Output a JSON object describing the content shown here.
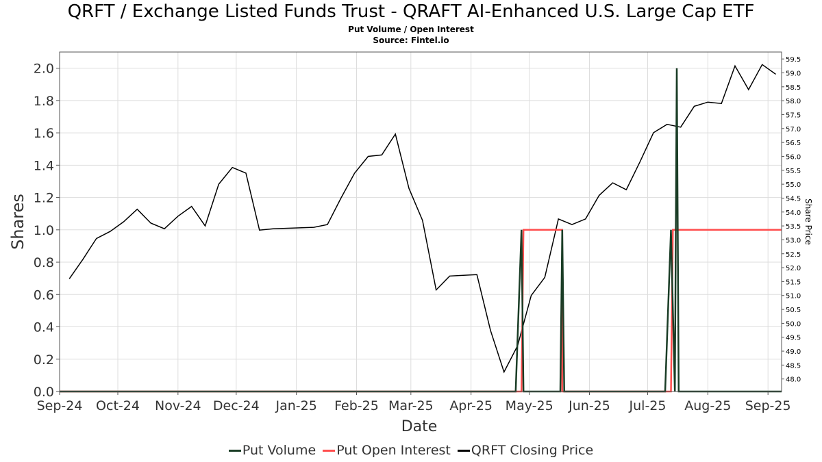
{
  "chart_data": {
    "type": "line",
    "title": "QRFT / Exchange Listed Funds Trust - QRAFT AI-Enhanced U.S. Large Cap ETF",
    "subtitle": "Put Volume / Open Interest",
    "source": "Source: Fintel.io",
    "xlabel": "Date",
    "ylabel": "Shares",
    "y2label": "Share Price",
    "xlim": [
      "2024-09-01",
      "2025-09-08"
    ],
    "ylim": [
      0,
      2.1
    ],
    "y2lim": [
      47.55,
      59.75
    ],
    "x_ticks": [
      "Sep-24",
      "Oct-24",
      "Nov-24",
      "Dec-24",
      "Jan-25",
      "Feb-25",
      "Mar-25",
      "Apr-25",
      "May-25",
      "Jun-25",
      "Jul-25",
      "Aug-25",
      "Sep-25"
    ],
    "x_tick_dates": [
      "2024-09-01",
      "2024-10-01",
      "2024-11-01",
      "2024-12-01",
      "2025-01-01",
      "2025-02-01",
      "2025-03-01",
      "2025-04-01",
      "2025-05-01",
      "2025-06-01",
      "2025-07-01",
      "2025-08-01",
      "2025-09-01"
    ],
    "y_ticks": [
      "0.0",
      "0.2",
      "0.4",
      "0.6",
      "0.8",
      "1.0",
      "1.2",
      "1.4",
      "1.6",
      "1.8",
      "2.0"
    ],
    "y2_ticks": [
      "48.0",
      "48.5",
      "49.0",
      "49.5",
      "50.0",
      "50.5",
      "51.0",
      "51.5",
      "52.0",
      "52.5",
      "53.0",
      "53.5",
      "54.0",
      "54.5",
      "55.0",
      "55.5",
      "56.0",
      "56.5",
      "57.0",
      "57.5",
      "58.0",
      "58.5",
      "59.0",
      "59.5"
    ],
    "grid": true,
    "legend_position": "bottom",
    "series": [
      {
        "name": "Put Volume",
        "axis": "left",
        "color": "#1a3d26",
        "x": [
          "2024-09-01",
          "2025-04-24",
          "2025-04-27",
          "2025-04-28",
          "2025-05-17",
          "2025-05-18",
          "2025-05-19",
          "2025-07-10",
          "2025-07-13",
          "2025-07-15",
          "2025-07-16",
          "2025-07-17",
          "2025-09-08"
        ],
        "values": [
          0,
          0,
          1.0,
          0,
          0,
          1.0,
          0,
          0,
          1.0,
          0,
          2.0,
          0,
          0
        ]
      },
      {
        "name": "Put Open Interest",
        "axis": "left",
        "color": "#ff4d4d",
        "x": [
          "2024-09-01",
          "2025-04-27",
          "2025-04-28",
          "2025-05-18",
          "2025-05-18",
          "2025-07-13",
          "2025-07-14",
          "2025-09-08"
        ],
        "values": [
          0,
          0,
          1.0,
          1.0,
          0,
          0,
          1.0,
          1.0
        ]
      },
      {
        "name": "QRFT Closing Price",
        "axis": "right",
        "color": "#000000",
        "x": [
          "2024-09-06",
          "2024-09-13",
          "2024-09-20",
          "2024-09-27",
          "2024-10-04",
          "2024-10-11",
          "2024-10-18",
          "2024-10-25",
          "2024-11-01",
          "2024-11-08",
          "2024-11-15",
          "2024-11-22",
          "2024-11-29",
          "2024-12-06",
          "2024-12-13",
          "2024-12-20",
          "2025-01-10",
          "2025-01-17",
          "2025-01-24",
          "2025-01-31",
          "2025-02-07",
          "2025-02-14",
          "2025-02-21",
          "2025-02-28",
          "2025-03-07",
          "2025-03-14",
          "2025-03-21",
          "2025-04-04",
          "2025-04-11",
          "2025-04-18",
          "2025-04-25",
          "2025-05-02",
          "2025-05-09",
          "2025-05-16",
          "2025-05-23",
          "2025-05-30",
          "2025-06-06",
          "2025-06-13",
          "2025-06-20",
          "2025-06-27",
          "2025-07-04",
          "2025-07-11",
          "2025-07-18",
          "2025-07-25",
          "2025-08-01",
          "2025-08-08",
          "2025-08-15",
          "2025-08-22",
          "2025-08-29",
          "2025-09-05"
        ],
        "values": [
          51.6,
          52.3,
          53.05,
          53.3,
          53.65,
          54.1,
          53.6,
          53.4,
          53.85,
          54.2,
          53.5,
          55.0,
          55.6,
          55.4,
          53.35,
          53.4,
          53.45,
          53.55,
          54.5,
          55.4,
          56.0,
          56.05,
          56.8,
          54.85,
          53.7,
          51.2,
          51.7,
          51.75,
          49.75,
          48.25,
          49.2,
          51.0,
          51.65,
          53.75,
          53.55,
          53.75,
          54.6,
          55.05,
          54.8,
          55.8,
          56.85,
          57.15,
          57.05,
          57.8,
          57.95,
          57.9,
          59.25,
          58.4,
          59.3,
          58.95
        ]
      }
    ]
  }
}
